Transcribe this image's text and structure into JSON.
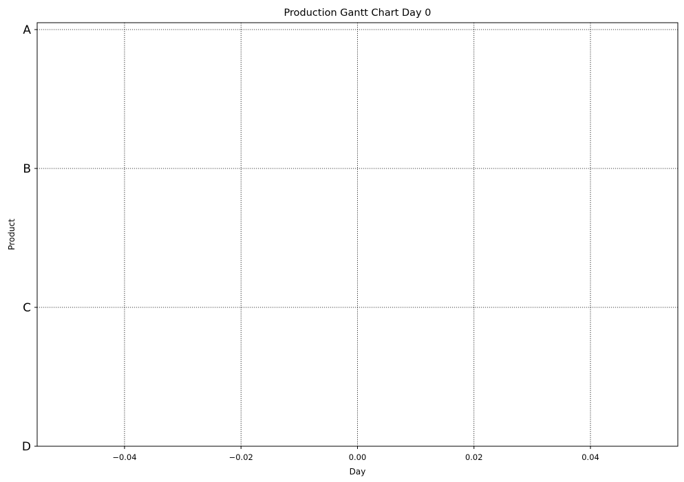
{
  "chart_data": {
    "type": "bar",
    "orientation": "horizontal",
    "title": "Production Gantt Chart Day 0",
    "xlabel": "Day",
    "ylabel": "Product",
    "xlim": [
      -0.055,
      0.055
    ],
    "xticks": [
      -0.04,
      -0.02,
      0.0,
      0.02,
      0.04
    ],
    "xtick_labels": [
      "−0.04",
      "−0.02",
      "0.00",
      "0.02",
      "0.04"
    ],
    "categories": [
      "A",
      "B",
      "C",
      "D"
    ],
    "series": [],
    "grid": true,
    "grid_style": "dotted"
  }
}
